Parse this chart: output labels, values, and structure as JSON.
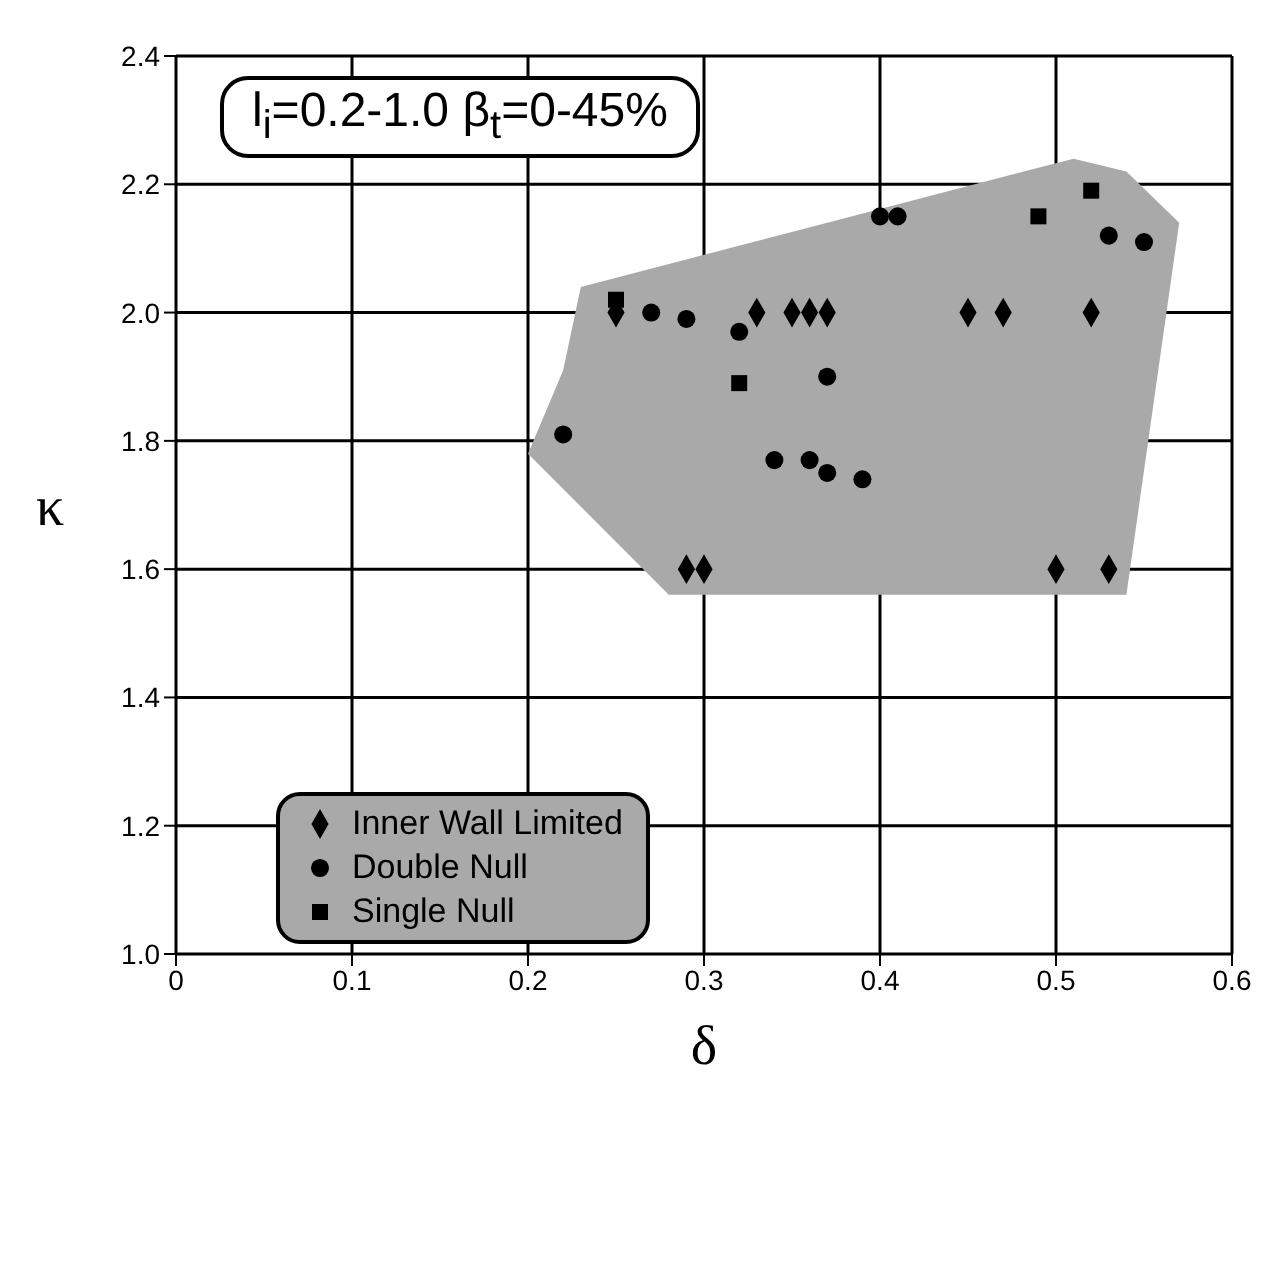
{
  "chart_data": {
    "type": "scatter",
    "title": "l$_{i}$=0.2-1.0  β$_{t}$=0-45%",
    "xlabel": "δ",
    "ylabel": "κ",
    "xlim": [
      0,
      0.6
    ],
    "xticks": [
      0,
      0.1,
      0.2,
      0.3,
      0.4,
      0.5,
      0.6
    ],
    "ylim": [
      1.0,
      2.4
    ],
    "yticks": [
      {
        "value": 1.0,
        "label": "1.0"
      },
      1.2,
      1.4,
      1.6,
      1.8,
      {
        "value": 2.0,
        "label": "2.0"
      },
      2.2,
      2.4
    ],
    "grid": true,
    "legend": "bottom left",
    "series": [
      {
        "type": "area",
        "color": "#a9a9a9",
        "x": [
          0.23,
          0.51,
          0.54,
          0.57,
          0.54,
          0.28,
          0.2,
          0.22
        ],
        "values": [
          2.04,
          2.24,
          2.22,
          2.14,
          1.56,
          1.56,
          1.78,
          1.91
        ]
      },
      {
        "name": "Inner Wall Limited",
        "color": "#000000",
        "marker": "diamond",
        "x": [
          0.25,
          0.33,
          0.35,
          0.36,
          0.37,
          0.45,
          0.47,
          0.52,
          0.29,
          0.3,
          0.5,
          0.53
        ],
        "values": [
          2.0,
          2.0,
          2.0,
          2.0,
          2.0,
          2.0,
          2.0,
          2.0,
          1.6,
          1.6,
          1.6,
          1.6
        ]
      },
      {
        "name": "Double Null",
        "color": "#000000",
        "marker": "circle",
        "x": [
          0.27,
          0.29,
          0.32,
          0.37,
          0.22,
          0.34,
          0.36,
          0.37,
          0.39,
          0.4,
          0.41,
          0.53,
          0.55
        ],
        "values": [
          2.0,
          1.99,
          1.97,
          1.9,
          1.81,
          1.77,
          1.77,
          1.75,
          1.74,
          2.15,
          2.15,
          2.12,
          2.11
        ]
      },
      {
        "name": "Single Null",
        "color": "#000000",
        "marker": "square",
        "x": [
          0.25,
          0.32,
          0.49,
          0.52
        ],
        "values": [
          2.02,
          1.89,
          2.15,
          2.19
        ]
      }
    ]
  }
}
